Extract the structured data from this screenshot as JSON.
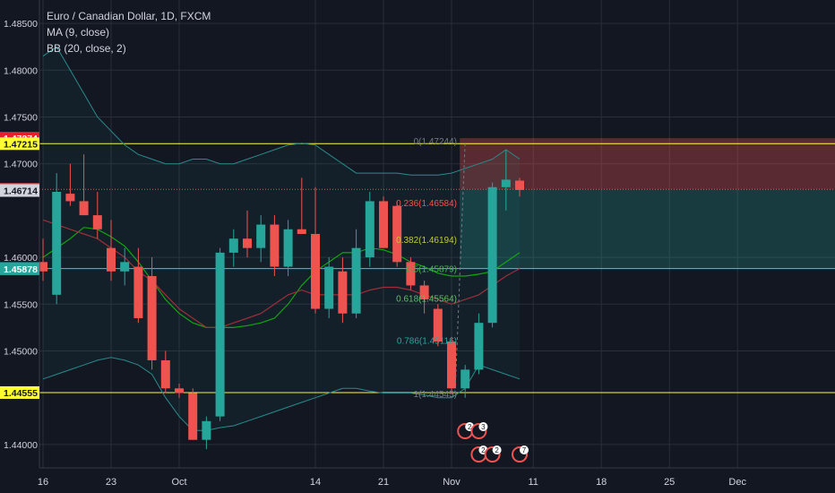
{
  "legend": {
    "symbol": "Euro / Canadian Dollar, 1D, FXCM",
    "ma": "MA (9, close)",
    "bb": "BB (20, close, 2)"
  },
  "price_axis": {
    "ticks": [
      "1.48500",
      "1.48000",
      "1.47500",
      "1.47000",
      "1.46000",
      "1.45500",
      "1.45000",
      "1.44000"
    ],
    "ticks_values": [
      1.485,
      1.48,
      1.475,
      1.47,
      1.46,
      1.455,
      1.45,
      1.44
    ],
    "badges": [
      {
        "label": "1.47274",
        "value": 1.47274,
        "bg": "#e5202e",
        "fg": "#ffffff"
      },
      {
        "label": "1.47215",
        "value": 1.47215,
        "bg": "#ffff33",
        "fg": "#131722"
      },
      {
        "label": "1.46726",
        "value": 1.46726,
        "bg": "#ef5350",
        "fg": "#ffffff"
      },
      {
        "label": "1.46714",
        "value": 1.46714,
        "bg": "#d1d4dc",
        "fg": "#131722"
      },
      {
        "label": "1.45880",
        "value": 1.4588,
        "bg": "#00e5ff",
        "fg": "#131722"
      },
      {
        "label": "1.45878",
        "value": 1.45878,
        "bg": "#26a69a",
        "fg": "#ffffff"
      },
      {
        "label": "1.44555",
        "value": 1.44555,
        "bg": "#ffff33",
        "fg": "#131722"
      }
    ]
  },
  "time_axis": {
    "labels": [
      "16",
      "23",
      "Oct",
      "14",
      "21",
      "Nov",
      "11",
      "18",
      "25",
      "Dec"
    ],
    "label_index": [
      0,
      5,
      10,
      20,
      25,
      30,
      36,
      41,
      46,
      51
    ]
  },
  "fib_levels": [
    {
      "label": "0(1.47244)",
      "value": 1.47244,
      "color": "#787b86"
    },
    {
      "label": "0.236(1.46584)",
      "value": 1.46584,
      "color": "#ef5350"
    },
    {
      "label": "0.382(1.46194)",
      "value": 1.46194,
      "color": "#c0ca33"
    },
    {
      "label": "0.5(1.45879)",
      "value": 1.45879,
      "color": "#4caf50"
    },
    {
      "label": "0.618(1.45564)",
      "value": 1.45564,
      "color": "#66bb6a"
    },
    {
      "label": "0.786(1.45116)",
      "value": 1.45116,
      "color": "#26a69a"
    },
    {
      "label": "1(1.44545)",
      "value": 1.44545,
      "color": "#787b86"
    }
  ],
  "horizontal_lines": [
    {
      "value": 1.47215,
      "color": "#ffff33"
    },
    {
      "value": 1.4588,
      "color": "#00e5ff"
    },
    {
      "value": 1.44555,
      "color": "#ffff33"
    }
  ],
  "position": {
    "entry": 1.46726,
    "stop": 1.47274,
    "target": 1.45878,
    "start_index": 31
  },
  "event_markers": [
    {
      "label": "2",
      "color": "#ef5350",
      "bg": "#ffffff",
      "row": 0,
      "x_index": 31
    },
    {
      "label": "3",
      "color": "#ef5350",
      "bg": "#ffffff",
      "row": 0,
      "x_index": 32
    },
    {
      "label": "2",
      "color": "#ef5350",
      "bg": "#ffffff",
      "row": 1,
      "x_index": 32
    },
    {
      "label": "2",
      "color": "#ef5350",
      "bg": "#ffffff",
      "row": 1,
      "x_index": 33
    },
    {
      "label": "7",
      "color": "#ef5350",
      "bg": "#ffffff",
      "row": 1,
      "x_index": 35
    }
  ],
  "colors": {
    "up": "#26a69a",
    "down": "#ef5350",
    "ma": "#9c2f38",
    "bb_basis": "#11a511",
    "bb_band": "#2a8a8a",
    "grid": "#2a2e39",
    "text": "#d1d4dc",
    "background": "#131722"
  },
  "chart_data": {
    "type": "candlestick",
    "title": "Euro / Canadian Dollar, 1D, FXCM",
    "ylim": [
      1.4375,
      1.4875
    ],
    "candles": [
      {
        "o": 1.4595,
        "h": 1.462,
        "l": 1.4575,
        "c": 1.4585
      },
      {
        "o": 1.456,
        "h": 1.469,
        "l": 1.455,
        "c": 1.467
      },
      {
        "o": 1.4668,
        "h": 1.47,
        "l": 1.4655,
        "c": 1.466
      },
      {
        "o": 1.466,
        "h": 1.471,
        "l": 1.4645,
        "c": 1.4645
      },
      {
        "o": 1.4645,
        "h": 1.467,
        "l": 1.462,
        "c": 1.463
      },
      {
        "o": 1.461,
        "h": 1.464,
        "l": 1.4575,
        "c": 1.4585
      },
      {
        "o": 1.4585,
        "h": 1.461,
        "l": 1.457,
        "c": 1.4595
      },
      {
        "o": 1.459,
        "h": 1.461,
        "l": 1.453,
        "c": 1.4535
      },
      {
        "o": 1.458,
        "h": 1.46,
        "l": 1.448,
        "c": 1.449
      },
      {
        "o": 1.449,
        "h": 1.45,
        "l": 1.4455,
        "c": 1.446
      },
      {
        "o": 1.446,
        "h": 1.4465,
        "l": 1.445,
        "c": 1.4455
      },
      {
        "o": 1.4455,
        "h": 1.446,
        "l": 1.4405,
        "c": 1.4405
      },
      {
        "o": 1.4405,
        "h": 1.443,
        "l": 1.4395,
        "c": 1.4425
      },
      {
        "o": 1.443,
        "h": 1.461,
        "l": 1.4425,
        "c": 1.4605
      },
      {
        "o": 1.4605,
        "h": 1.463,
        "l": 1.459,
        "c": 1.462
      },
      {
        "o": 1.462,
        "h": 1.465,
        "l": 1.46,
        "c": 1.461
      },
      {
        "o": 1.461,
        "h": 1.4645,
        "l": 1.4595,
        "c": 1.4635
      },
      {
        "o": 1.4635,
        "h": 1.4645,
        "l": 1.458,
        "c": 1.459
      },
      {
        "o": 1.459,
        "h": 1.464,
        "l": 1.458,
        "c": 1.463
      },
      {
        "o": 1.463,
        "h": 1.4685,
        "l": 1.4625,
        "c": 1.4625
      },
      {
        "o": 1.4625,
        "h": 1.4675,
        "l": 1.454,
        "c": 1.4545
      },
      {
        "o": 1.4545,
        "h": 1.46,
        "l": 1.4535,
        "c": 1.459
      },
      {
        "o": 1.4585,
        "h": 1.46,
        "l": 1.453,
        "c": 1.454
      },
      {
        "o": 1.454,
        "h": 1.463,
        "l": 1.4535,
        "c": 1.461
      },
      {
        "o": 1.46,
        "h": 1.467,
        "l": 1.459,
        "c": 1.466
      },
      {
        "o": 1.466,
        "h": 1.4665,
        "l": 1.461,
        "c": 1.461
      },
      {
        "o": 1.4655,
        "h": 1.466,
        "l": 1.459,
        "c": 1.4595
      },
      {
        "o": 1.4595,
        "h": 1.46,
        "l": 1.4565,
        "c": 1.457
      },
      {
        "o": 1.457,
        "h": 1.4575,
        "l": 1.454,
        "c": 1.4555
      },
      {
        "o": 1.4545,
        "h": 1.455,
        "l": 1.4505,
        "c": 1.451
      },
      {
        "o": 1.451,
        "h": 1.4515,
        "l": 1.4455,
        "c": 1.446
      },
      {
        "o": 1.446,
        "h": 1.4485,
        "l": 1.445,
        "c": 1.448
      },
      {
        "o": 1.448,
        "h": 1.454,
        "l": 1.4475,
        "c": 1.453
      },
      {
        "o": 1.453,
        "h": 1.468,
        "l": 1.4525,
        "c": 1.4675
      },
      {
        "o": 1.4675,
        "h": 1.4715,
        "l": 1.465,
        "c": 1.4683
      },
      {
        "o": 1.4682,
        "h": 1.4685,
        "l": 1.4665,
        "c": 1.4672
      }
    ],
    "ma": [
      1.464,
      1.4635,
      1.463,
      1.4625,
      1.462,
      1.461,
      1.46,
      1.4585,
      1.4575,
      1.456,
      1.4545,
      1.4535,
      1.4525,
      1.4525,
      1.453,
      1.4535,
      1.454,
      1.455,
      1.456,
      1.4565,
      1.456,
      1.456,
      1.456,
      1.456,
      1.4565,
      1.4568,
      1.4568,
      1.4565,
      1.456,
      1.4555,
      1.455,
      1.4555,
      1.456,
      1.457,
      1.458,
      1.4588
    ],
    "bb_basis": [
      1.46,
      1.461,
      1.462,
      1.4632,
      1.463,
      1.4622,
      1.4612,
      1.4595,
      1.4575,
      1.4555,
      1.454,
      1.453,
      1.4525,
      1.4525,
      1.4525,
      1.4527,
      1.453,
      1.4535,
      1.455,
      1.457,
      1.4585,
      1.4595,
      1.4605,
      1.4605,
      1.461,
      1.4608,
      1.4603,
      1.4595,
      1.459,
      1.4583,
      1.458,
      1.458,
      1.4582,
      1.4585,
      1.4595,
      1.4605
    ],
    "bb_upper": [
      1.4815,
      1.4825,
      1.48,
      1.4775,
      1.475,
      1.4735,
      1.472,
      1.471,
      1.4705,
      1.47,
      1.47,
      1.4705,
      1.4705,
      1.47,
      1.47,
      1.4705,
      1.471,
      1.4715,
      1.472,
      1.4722,
      1.472,
      1.471,
      1.47,
      1.469,
      1.469,
      1.469,
      1.469,
      1.4688,
      1.4688,
      1.4688,
      1.469,
      1.4695,
      1.47,
      1.4705,
      1.4715,
      1.4705
    ],
    "bb_lower": [
      1.447,
      1.4475,
      1.448,
      1.4485,
      1.449,
      1.4493,
      1.449,
      1.4485,
      1.4475,
      1.445,
      1.443,
      1.4415,
      1.4415,
      1.4418,
      1.442,
      1.4425,
      1.443,
      1.4435,
      1.444,
      1.4445,
      1.445,
      1.4455,
      1.446,
      1.446,
      1.4457,
      1.4455,
      1.4455,
      1.4455,
      1.4453,
      1.445,
      1.445,
      1.446,
      1.4485,
      1.448,
      1.4475,
      1.447
    ]
  }
}
